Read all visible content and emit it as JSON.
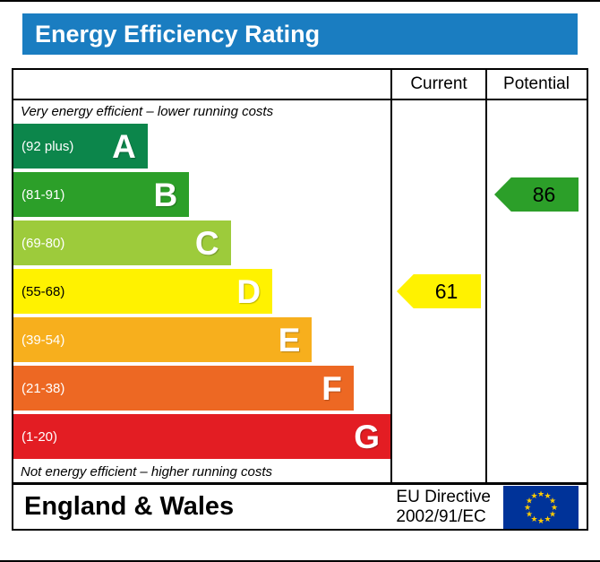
{
  "title": "Energy Efficiency Rating",
  "header": {
    "current": "Current",
    "potential": "Potential"
  },
  "notes": {
    "top": "Very energy efficient – lower running costs",
    "bottom": "Not energy efficient – higher running costs"
  },
  "bands": [
    {
      "letter": "A",
      "range": "(92 plus)",
      "color": "#0c864b",
      "text_color": "#ffffff",
      "width_pct": 35.5
    },
    {
      "letter": "B",
      "range": "(81-91)",
      "color": "#2c9f29",
      "text_color": "#ffffff",
      "width_pct": 46.5
    },
    {
      "letter": "C",
      "range": "(69-80)",
      "color": "#9dcb3b",
      "text_color": "#ffffff",
      "width_pct": 57.5
    },
    {
      "letter": "D",
      "range": "(55-68)",
      "color": "#fff200",
      "text_color": "#000000",
      "width_pct": 68.5
    },
    {
      "letter": "E",
      "range": "(39-54)",
      "color": "#f7af1d",
      "text_color": "#ffffff",
      "width_pct": 79
    },
    {
      "letter": "F",
      "range": "(21-38)",
      "color": "#ed6823",
      "text_color": "#ffffff",
      "width_pct": 90
    },
    {
      "letter": "G",
      "range": "(1-20)",
      "color": "#e31d23",
      "text_color": "#ffffff",
      "width_pct": 100
    }
  ],
  "ratings": {
    "current": {
      "value": "61",
      "band_index": 3,
      "color": "#fff200",
      "text_color": "#000000"
    },
    "potential": {
      "value": "86",
      "band_index": 1,
      "color": "#2c9f29",
      "text_color": "#000000"
    }
  },
  "footer": {
    "region": "England & Wales",
    "directive_line1": "EU Directive",
    "directive_line2": "2002/91/EC"
  },
  "colors": {
    "title_bar": "#1a7dc1",
    "eu_flag_bg": "#003399",
    "eu_flag_stars": "#ffcc00"
  },
  "chart_data": {
    "type": "bar",
    "title": "Energy Efficiency Rating",
    "categories": [
      "A",
      "B",
      "C",
      "D",
      "E",
      "F",
      "G"
    ],
    "band_ranges": [
      "(92 plus)",
      "(81-91)",
      "(69-80)",
      "(55-68)",
      "(39-54)",
      "(21-38)",
      "(1-20)"
    ],
    "band_colors": [
      "#0c864b",
      "#2c9f29",
      "#9dcb3b",
      "#fff200",
      "#f7af1d",
      "#ed6823",
      "#e31d23"
    ],
    "series": [
      {
        "name": "Current",
        "value": 61,
        "band": "D"
      },
      {
        "name": "Potential",
        "value": 86,
        "band": "B"
      }
    ],
    "region": "England & Wales",
    "directive": "EU Directive 2002/91/EC"
  }
}
